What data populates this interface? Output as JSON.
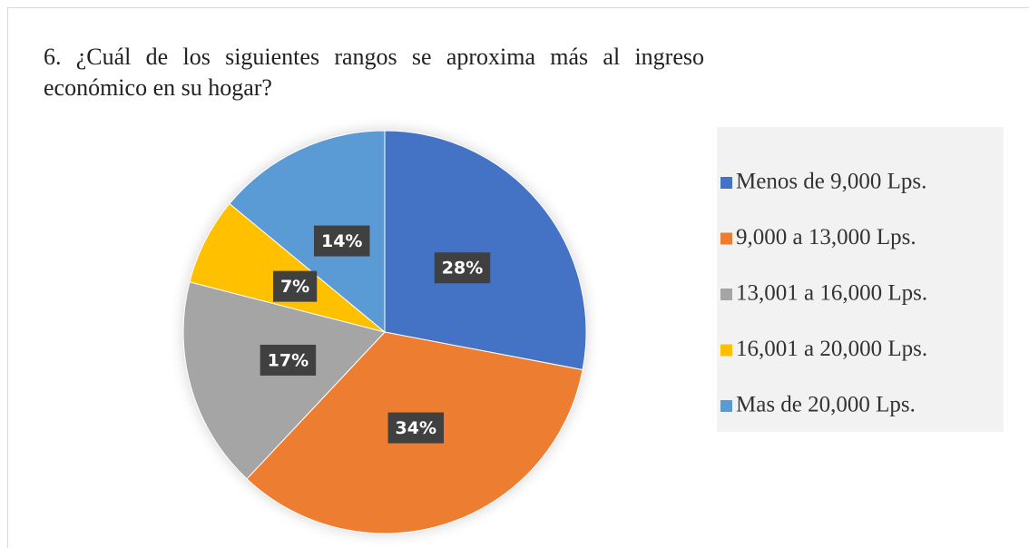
{
  "chart_data": {
    "type": "pie",
    "title": "6. ¿Cuál de los siguientes rangos se aproxima más al ingreso económico en su hogar?",
    "categories": [
      "Menos de 9,000 Lps.",
      "9,000 a 13,000 Lps.",
      "13,001 a 16,000 Lps.",
      "16,001 a 20,000 Lps.",
      "Mas de 20,000 Lps."
    ],
    "values": [
      28,
      34,
      17,
      7,
      14
    ],
    "value_labels": [
      "28%",
      "34%",
      "17%",
      "7%",
      "14%"
    ],
    "colors": [
      "#4472c4",
      "#ed7d31",
      "#a5a5a5",
      "#ffc000",
      "#5b9bd5"
    ],
    "legend": "right"
  }
}
